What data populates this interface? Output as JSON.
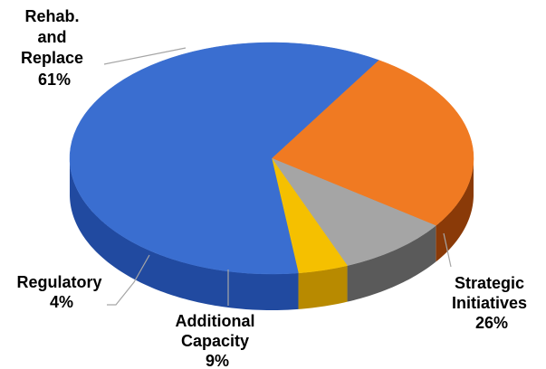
{
  "chart_data": {
    "type": "pie",
    "three_d": true,
    "start_angle_deg": 58,
    "direction": "clockwise",
    "slices": [
      {
        "label_lines": [
          "Strategic",
          "Initiatives"
        ],
        "value_text": "26%",
        "value": 26,
        "color": "#f07a22",
        "color_dark": "#8a3a08"
      },
      {
        "label_lines": [
          "Additional",
          "Capacity"
        ],
        "value_text": "9%",
        "value": 9,
        "color": "#a5a5a5",
        "color_dark": "#5a5a5a"
      },
      {
        "label_lines": [
          "Regulatory"
        ],
        "value_text": "4%",
        "value": 4,
        "color": "#f5c000",
        "color_dark": "#b88a00"
      },
      {
        "label_lines": [
          "Rehab.",
          "and",
          "Replace"
        ],
        "value_text": "61%",
        "value": 61,
        "color": "#3a6ed0",
        "color_dark": "#214aa0"
      }
    ]
  }
}
